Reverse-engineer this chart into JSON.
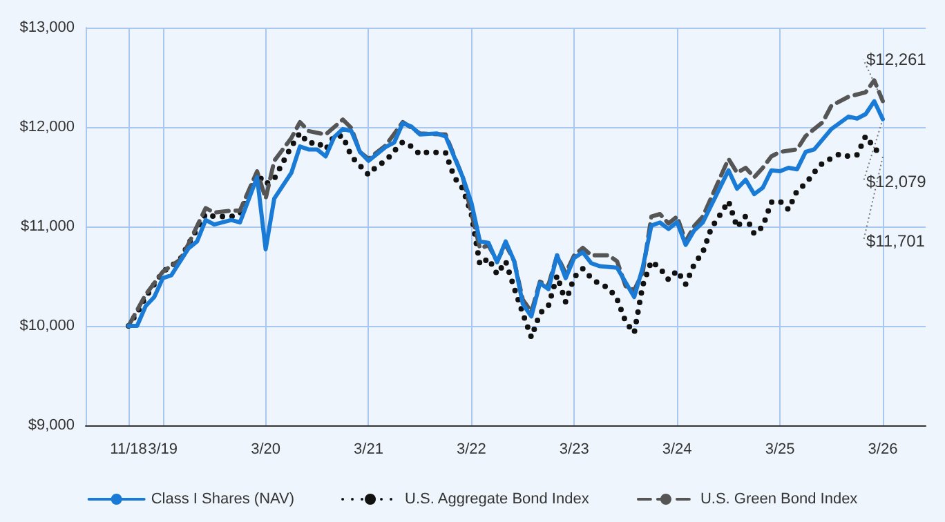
{
  "chart_data": {
    "type": "line",
    "xlim": [
      "2018-06",
      "2026-08"
    ],
    "xticks": [
      {
        "value": "2018-11",
        "label": "11/18"
      },
      {
        "value": "2019-03",
        "label": "3/19"
      },
      {
        "value": "2020-03",
        "label": "3/20"
      },
      {
        "value": "2021-03",
        "label": "3/21"
      },
      {
        "value": "2022-03",
        "label": "3/22"
      },
      {
        "value": "2023-03",
        "label": "3/23"
      },
      {
        "value": "2024-03",
        "label": "3/24"
      },
      {
        "value": "2025-03",
        "label": "3/25"
      },
      {
        "value": "2026-03",
        "label": "3/26"
      }
    ],
    "ylim": [
      9000,
      13000
    ],
    "yticks": [
      {
        "value": 9000,
        "label": "$9,000"
      },
      {
        "value": 10000,
        "label": "$10,000"
      },
      {
        "value": 11000,
        "label": "$11,000"
      },
      {
        "value": 12000,
        "label": "$12,000"
      },
      {
        "value": 13000,
        "label": "$13,000"
      }
    ],
    "grid": true,
    "legend": "bottom",
    "marker": "none",
    "series": [
      {
        "name": "Class I Shares (NAV)",
        "color": "#1a7bd6",
        "line_style": "solid",
        "x": [
          "2018-11",
          "2018-12",
          "2019-01",
          "2019-02",
          "2019-03",
          "2019-04",
          "2019-06",
          "2019-07",
          "2019-08",
          "2019-09",
          "2019-11",
          "2019-12",
          "2020-02",
          "2020-03",
          "2020-04",
          "2020-06",
          "2020-07",
          "2020-08",
          "2020-09",
          "2020-10",
          "2020-11",
          "2020-12",
          "2021-01",
          "2021-02",
          "2021-03",
          "2021-05",
          "2021-06",
          "2021-07",
          "2021-08",
          "2021-09",
          "2021-11",
          "2021-12",
          "2022-02",
          "2022-03",
          "2022-04",
          "2022-05",
          "2022-06",
          "2022-07",
          "2022-08",
          "2022-09",
          "2022-10",
          "2022-11",
          "2022-12",
          "2023-01",
          "2023-02",
          "2023-03",
          "2023-04",
          "2023-05",
          "2023-06",
          "2023-08",
          "2023-10",
          "2023-11",
          "2023-12",
          "2024-01",
          "2024-02",
          "2024-03",
          "2024-04",
          "2024-05",
          "2024-06",
          "2024-09",
          "2024-10",
          "2024-11",
          "2024-12",
          "2025-01",
          "2025-02",
          "2025-03",
          "2025-04",
          "2025-05",
          "2025-06",
          "2025-07",
          "2025-09",
          "2025-11",
          "2025-12",
          "2026-01",
          "2026-02",
          "2026-03"
        ],
        "values": [
          10000,
          10000,
          10200,
          10290,
          10480,
          10510,
          10780,
          10850,
          11065,
          11020,
          11065,
          11040,
          11495,
          10770,
          11280,
          11540,
          11805,
          11775,
          11775,
          11705,
          11900,
          11980,
          11960,
          11750,
          11660,
          11800,
          11845,
          12040,
          12005,
          11925,
          11935,
          11905,
          11495,
          11240,
          10850,
          10835,
          10640,
          10850,
          10650,
          10220,
          10095,
          10430,
          10370,
          10710,
          10480,
          10685,
          10740,
          10630,
          10600,
          10585,
          10290,
          10590,
          11010,
          11040,
          10975,
          11045,
          10815,
          10960,
          11040,
          11565,
          11380,
          11470,
          11325,
          11390,
          11565,
          11555,
          11590,
          11575,
          11750,
          11775,
          11980,
          12105,
          12085,
          12130,
          12260,
          12079
        ]
      },
      {
        "name": "U.S. Aggregate Bond Index",
        "color": "#111111",
        "line_style": "dotted",
        "x": [
          "2018-11",
          "2018-12",
          "2019-01",
          "2019-03",
          "2019-05",
          "2019-06",
          "2019-08",
          "2019-09",
          "2019-11",
          "2019-12",
          "2020-02",
          "2020-03",
          "2020-04",
          "2020-06",
          "2020-07",
          "2020-08",
          "2020-09",
          "2020-10",
          "2020-11",
          "2020-12",
          "2021-01",
          "2021-03",
          "2021-04",
          "2021-05",
          "2021-06",
          "2021-07",
          "2021-08",
          "2021-09",
          "2021-10",
          "2021-12",
          "2022-01",
          "2022-02",
          "2022-03",
          "2022-04",
          "2022-05",
          "2022-06",
          "2022-07",
          "2022-08",
          "2022-09",
          "2022-10",
          "2022-11",
          "2022-12",
          "2023-01",
          "2023-02",
          "2023-03",
          "2023-04",
          "2023-05",
          "2023-06",
          "2023-07",
          "2023-08",
          "2023-09",
          "2023-10",
          "2023-11",
          "2023-12",
          "2024-01",
          "2024-02",
          "2024-03",
          "2024-04",
          "2024-05",
          "2024-06",
          "2024-07",
          "2024-08",
          "2024-09",
          "2024-10",
          "2024-11",
          "2024-12",
          "2025-01",
          "2025-02",
          "2025-03",
          "2025-04",
          "2025-05",
          "2025-06",
          "2025-07",
          "2025-08",
          "2025-10",
          "2025-11",
          "2025-12",
          "2026-01",
          "2026-02",
          "2026-03"
        ],
        "values": [
          10000,
          10130,
          10290,
          10545,
          10665,
          10825,
          11125,
          11100,
          11100,
          11125,
          11530,
          11425,
          11480,
          11805,
          11940,
          11835,
          11850,
          11775,
          11910,
          11910,
          11705,
          11520,
          11610,
          11660,
          11760,
          11850,
          11805,
          11725,
          11750,
          11740,
          11495,
          11380,
          11125,
          10615,
          10680,
          10520,
          10650,
          10380,
          10125,
          9885,
          10125,
          10205,
          10505,
          10240,
          10490,
          10575,
          10480,
          10415,
          10385,
          10270,
          10040,
          9930,
          10410,
          10650,
          10580,
          10465,
          10555,
          10420,
          10620,
          10740,
          10985,
          11115,
          11255,
          10990,
          11105,
          10925,
          11000,
          11245,
          11255,
          11170,
          11360,
          11430,
          11545,
          11640,
          11730,
          11705,
          11720,
          11910,
          11790,
          11701
        ]
      },
      {
        "name": "U.S. Green Bond Index",
        "color": "#555555",
        "line_style": "dashed",
        "x": [
          "2018-11",
          "2019-01",
          "2019-03",
          "2019-05",
          "2019-06",
          "2019-08",
          "2019-09",
          "2019-11",
          "2019-12",
          "2020-02",
          "2020-03",
          "2020-04",
          "2020-06",
          "2020-07",
          "2020-08",
          "2020-10",
          "2020-12",
          "2021-01",
          "2021-02",
          "2021-03",
          "2021-05",
          "2021-07",
          "2021-09",
          "2021-12",
          "2022-02",
          "2022-04",
          "2022-05",
          "2022-06",
          "2022-07",
          "2022-08",
          "2022-09",
          "2022-10",
          "2022-11",
          "2022-12",
          "2023-01",
          "2023-02",
          "2023-03",
          "2023-04",
          "2023-05",
          "2023-07",
          "2023-08",
          "2023-09",
          "2023-10",
          "2023-11",
          "2023-12",
          "2024-01",
          "2024-02",
          "2024-03",
          "2024-04",
          "2024-05",
          "2024-06",
          "2024-09",
          "2024-10",
          "2024-11",
          "2024-12",
          "2025-01",
          "2025-02",
          "2025-03",
          "2025-05",
          "2025-06",
          "2025-08",
          "2025-09",
          "2025-11",
          "2026-01",
          "2026-02",
          "2026-03"
        ],
        "values": [
          10000,
          10315,
          10545,
          10665,
          10825,
          11185,
          11140,
          11160,
          11160,
          11555,
          11280,
          11660,
          11890,
          12050,
          11960,
          11925,
          12075,
          11990,
          11750,
          11680,
          11815,
          12050,
          11935,
          11925,
          11495,
          10780,
          10810,
          10650,
          10820,
          10650,
          10265,
          10140,
          10445,
          10415,
          10710,
          10530,
          10710,
          10785,
          10710,
          10710,
          10650,
          10400,
          10360,
          10540,
          11100,
          11125,
          11030,
          11100,
          10850,
          11005,
          11100,
          11680,
          11540,
          11590,
          11495,
          11590,
          11705,
          11750,
          11775,
          11910,
          12050,
          12215,
          12305,
          12350,
          12470,
          12261
        ]
      }
    ],
    "annotations": [
      {
        "text": "$12,261",
        "x": "2026-03",
        "y": 12261
      },
      {
        "text": "$12,079",
        "x": "2026-03",
        "y": 12079
      },
      {
        "text": "$11,701",
        "x": "2026-03",
        "y": 11701
      }
    ]
  }
}
